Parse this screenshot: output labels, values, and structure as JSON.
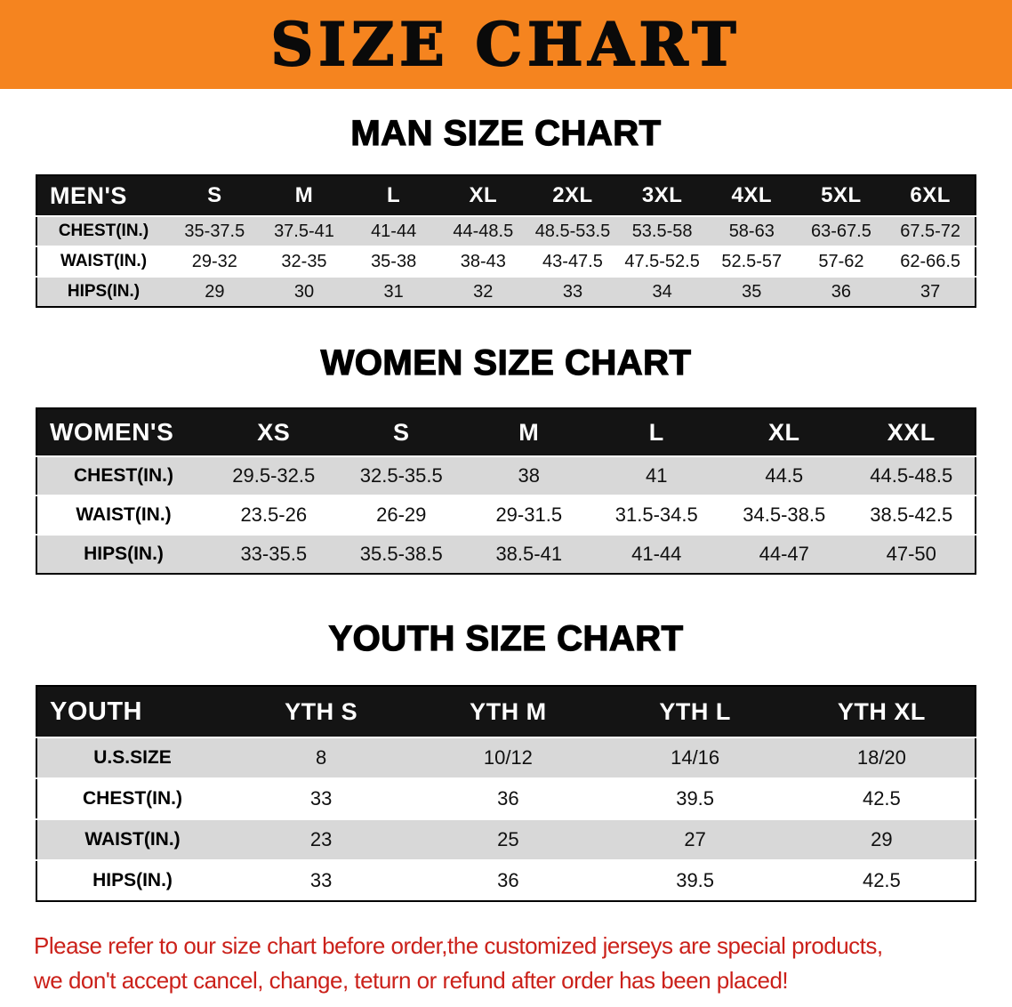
{
  "banner": {
    "title": "SIZE CHART",
    "bg_color": "#f5841f",
    "text_color": "#0a0a0a"
  },
  "colors": {
    "table_header_bg": "#141414",
    "table_header_text": "#ffffff",
    "row_gray": "#d8d8d8",
    "row_white": "#ffffff",
    "footer_red": "#cb211a"
  },
  "tables": [
    {
      "id": "mens",
      "heading": "MAN SIZE CHART",
      "header": [
        "MEN'S",
        "S",
        "M",
        "L",
        "XL",
        "2XL",
        "3XL",
        "4XL",
        "5XL",
        "6XL"
      ],
      "rows": [
        [
          "CHEST(IN.)",
          "35-37.5",
          "37.5-41",
          "41-44",
          "44-48.5",
          "48.5-53.5",
          "53.5-58",
          "58-63",
          "63-67.5",
          "67.5-72"
        ],
        [
          "WAIST(IN.)",
          "29-32",
          "32-35",
          "35-38",
          "38-43",
          "43-47.5",
          "47.5-52.5",
          "52.5-57",
          "57-62",
          "62-66.5"
        ],
        [
          "HIPS(IN.)",
          "29",
          "30",
          "31",
          "32",
          "33",
          "34",
          "35",
          "36",
          "37"
        ]
      ]
    },
    {
      "id": "womens",
      "heading": "WOMEN SIZE CHART",
      "header": [
        "WOMEN'S",
        "XS",
        "S",
        "M",
        "L",
        "XL",
        "XXL"
      ],
      "rows": [
        [
          "CHEST(IN.)",
          "29.5-32.5",
          "32.5-35.5",
          "38",
          "41",
          "44.5",
          "44.5-48.5"
        ],
        [
          "WAIST(IN.)",
          "23.5-26",
          "26-29",
          "29-31.5",
          "31.5-34.5",
          "34.5-38.5",
          "38.5-42.5"
        ],
        [
          "HIPS(IN.)",
          "33-35.5",
          "35.5-38.5",
          "38.5-41",
          "41-44",
          "44-47",
          "47-50"
        ]
      ]
    },
    {
      "id": "youth",
      "heading": "YOUTH SIZE CHART",
      "header": [
        "YOUTH",
        "YTH S",
        "YTH M",
        "YTH L",
        "YTH XL"
      ],
      "rows": [
        [
          "U.S.SIZE",
          "8",
          "10/12",
          "14/16",
          "18/20"
        ],
        [
          "CHEST(IN.)",
          "33",
          "36",
          "39.5",
          "42.5"
        ],
        [
          "WAIST(IN.)",
          "23",
          "25",
          "27",
          "29"
        ],
        [
          "HIPS(IN.)",
          "33",
          "36",
          "39.5",
          "42.5"
        ]
      ]
    }
  ],
  "footer": {
    "lines": [
      "Please refer to our size chart before order,the customized jerseys are special products,",
      "we don't accept cancel, change, teturn or refund after order has been placed!"
    ]
  }
}
